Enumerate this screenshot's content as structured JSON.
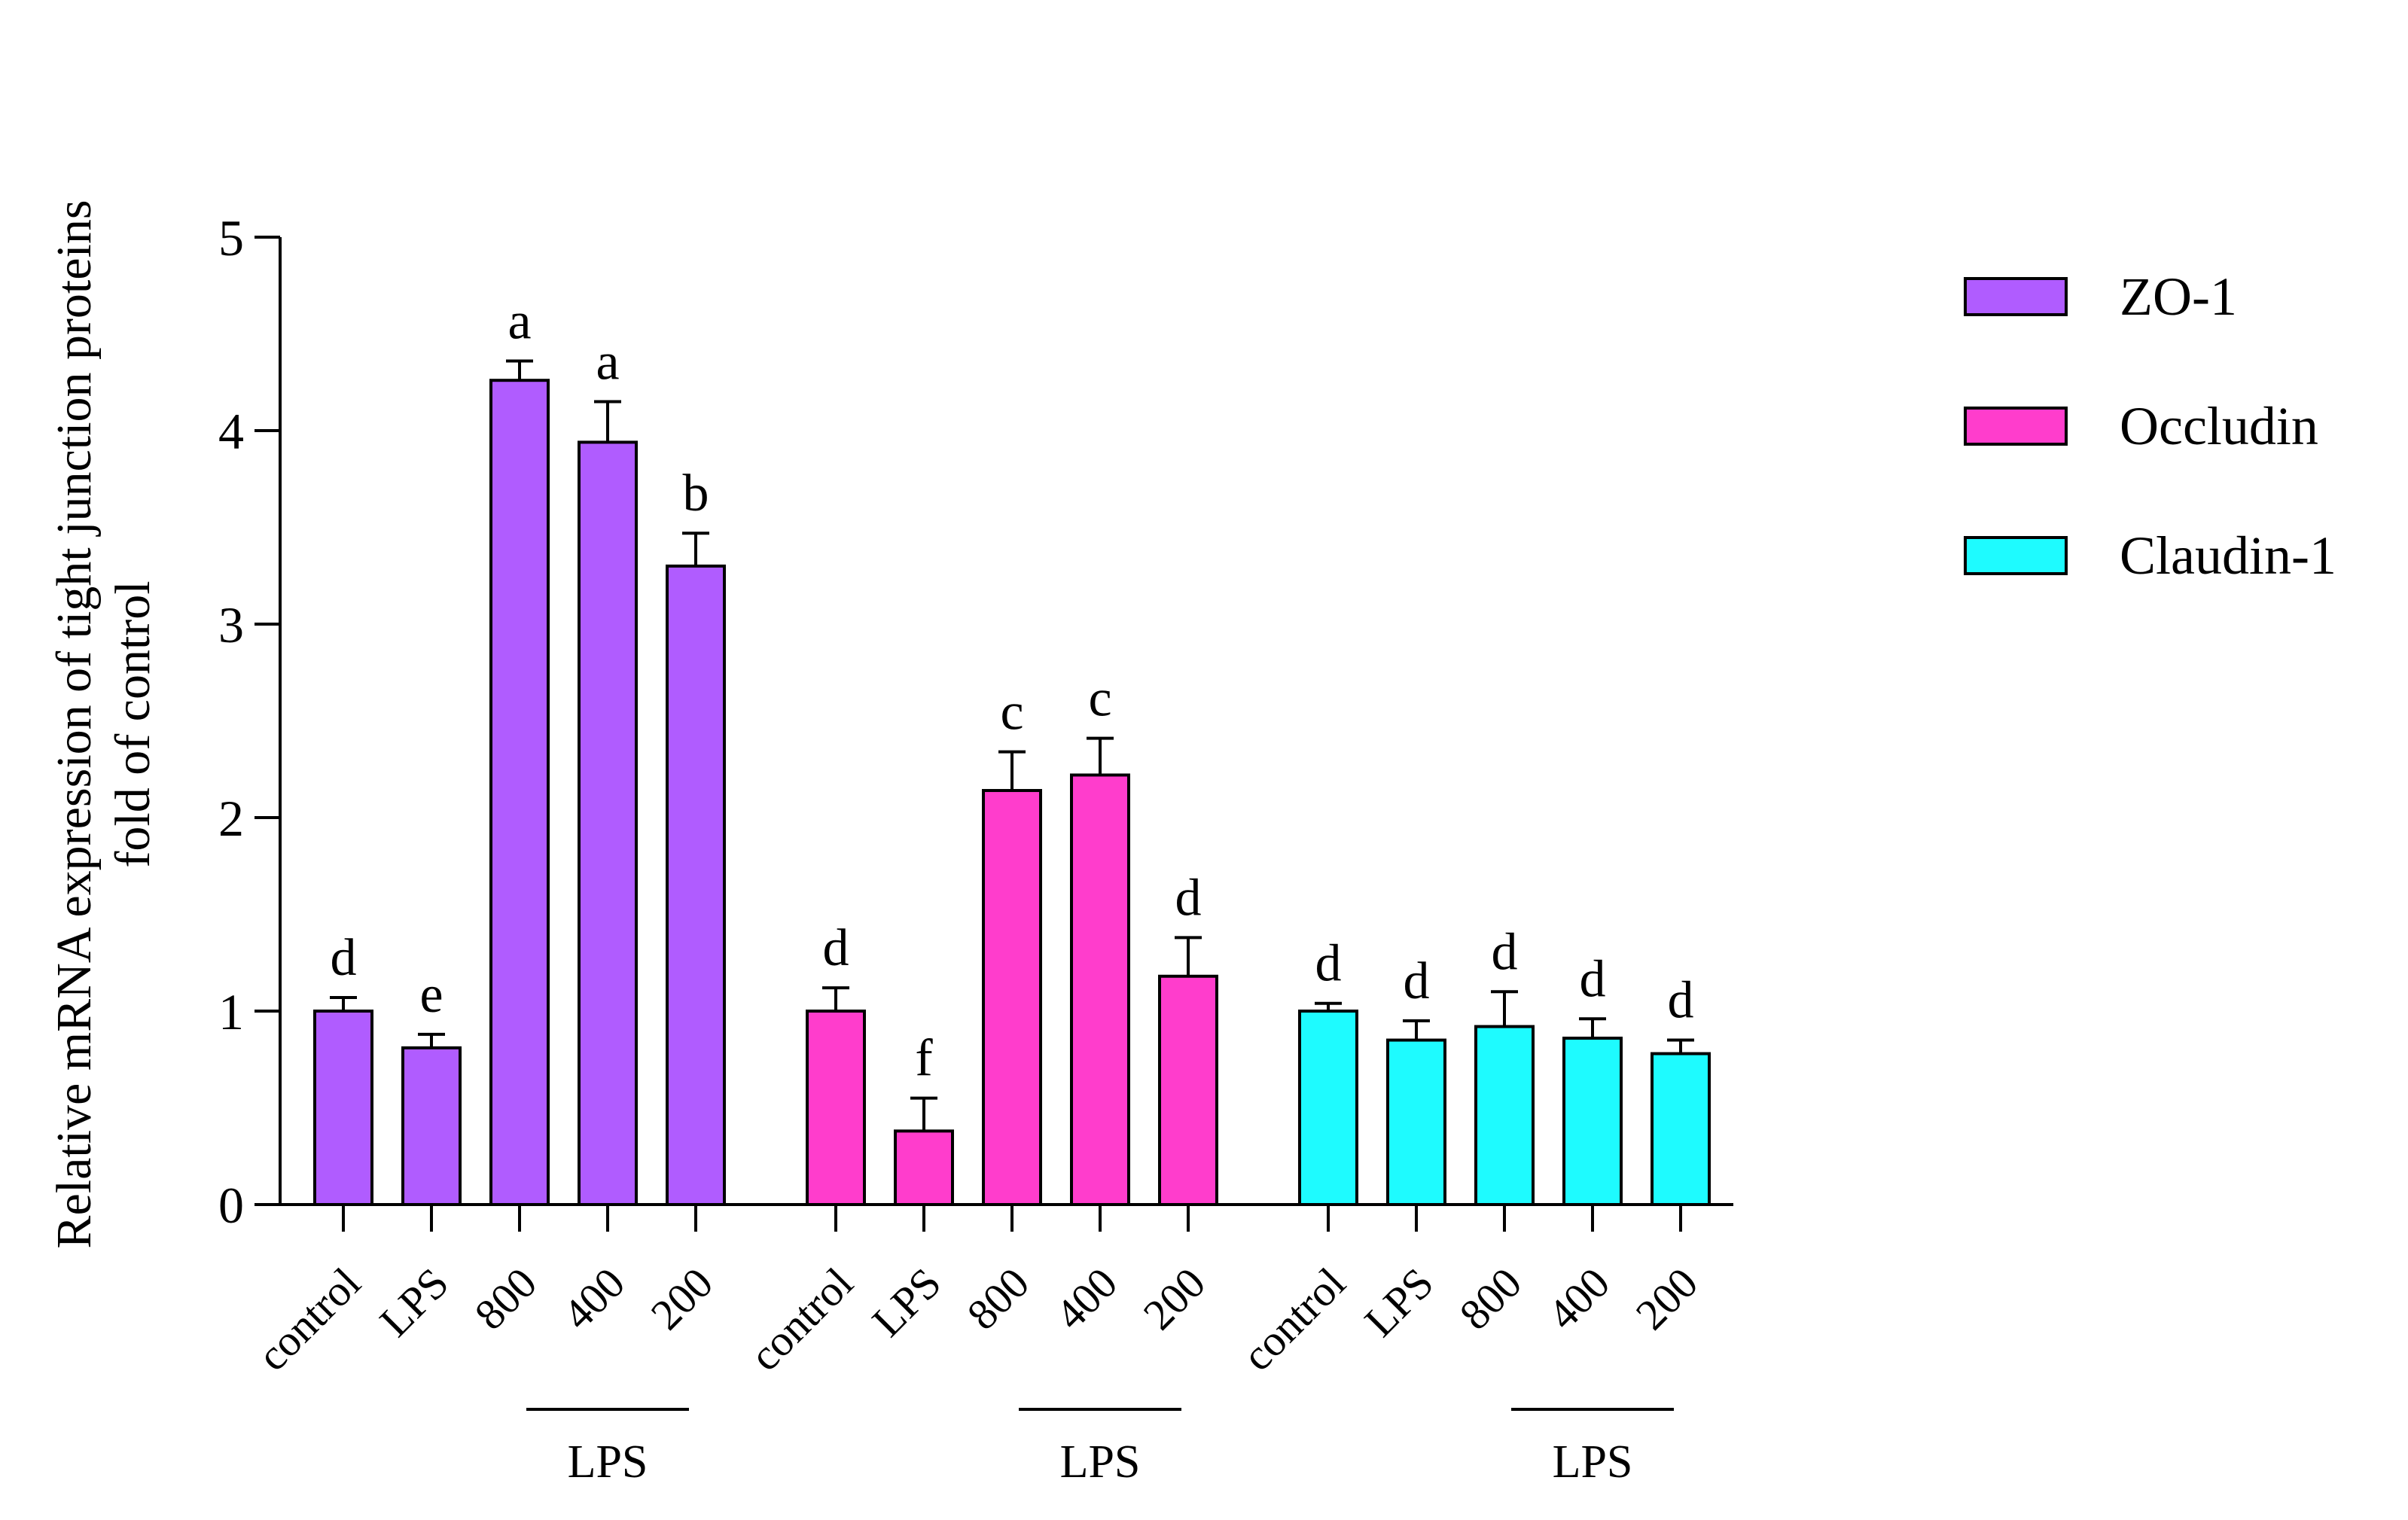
{
  "chart_data": {
    "type": "bar",
    "ylabel": [
      "Relative mRNA expression of tight junction proteins",
      "fold of control"
    ],
    "ylim": [
      0,
      5
    ],
    "yticks": [
      "0",
      "1",
      "2",
      "3",
      "4",
      "5"
    ],
    "legend_position": "top-right",
    "series": [
      {
        "name": "ZO-1",
        "color": "#B05CFF",
        "group_label": "LPS",
        "categories": [
          "control",
          "LPS",
          "800",
          "400",
          "200"
        ],
        "values": [
          1.0,
          0.81,
          4.26,
          3.94,
          3.3
        ],
        "errors": [
          0.07,
          0.07,
          0.1,
          0.21,
          0.17
        ],
        "labels": [
          "d",
          "e",
          "a",
          "a",
          "b"
        ]
      },
      {
        "name": "Occludin",
        "color": "#FF3DCC",
        "group_label": "LPS",
        "categories": [
          "control",
          "LPS",
          "800",
          "400",
          "200"
        ],
        "values": [
          1.0,
          0.38,
          2.14,
          2.22,
          1.18
        ],
        "errors": [
          0.12,
          0.17,
          0.2,
          0.19,
          0.2
        ],
        "labels": [
          "d",
          "f",
          "c",
          "c",
          "d"
        ]
      },
      {
        "name": "Claudin-1",
        "color": "#1EFBFF",
        "group_label": "LPS",
        "categories": [
          "control",
          "LPS",
          "800",
          "400",
          "200"
        ],
        "values": [
          1.0,
          0.85,
          0.92,
          0.86,
          0.78
        ],
        "errors": [
          0.04,
          0.1,
          0.18,
          0.1,
          0.07
        ],
        "labels": [
          "d",
          "d",
          "d",
          "d",
          "d"
        ]
      }
    ]
  }
}
